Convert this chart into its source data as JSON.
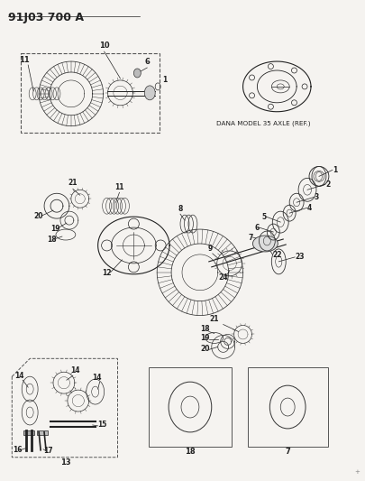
{
  "title": "91J03 700 A",
  "background_color": "#f5f3f0",
  "text_color": "#222222",
  "dana_label": "DANA MODEL 35 AXLE (REF.)",
  "fig_w": 4.05,
  "fig_h": 5.33,
  "dpi": 100
}
